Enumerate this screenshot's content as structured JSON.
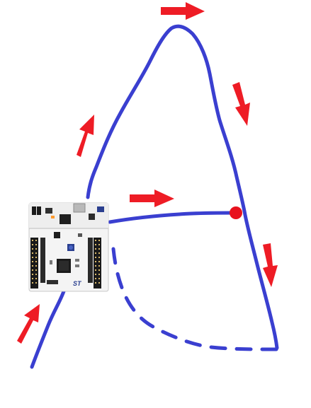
{
  "colors": {
    "background": "#ffffff",
    "path": "#3a3fd0",
    "arrow": "#ee1c25",
    "point": "#e8111d",
    "board_pcb": "#f4f4f4",
    "board_header": "#1a1a1a",
    "board_accent": "#2a3f8f"
  },
  "board": {
    "icon": "microcontroller-board-icon",
    "logo": "ST"
  },
  "path": {
    "solid_segments": 4,
    "dashed_segments": 1
  },
  "arrows": [
    {
      "name": "arrow-bottom-left",
      "direction": "up-right"
    },
    {
      "name": "arrow-left-climb",
      "direction": "up-right"
    },
    {
      "name": "arrow-peak",
      "direction": "right"
    },
    {
      "name": "arrow-right-descent",
      "direction": "down"
    },
    {
      "name": "arrow-horizontal",
      "direction": "right"
    },
    {
      "name": "arrow-lower-right",
      "direction": "down"
    }
  ],
  "marker": {
    "icon": "red-dot-marker"
  }
}
